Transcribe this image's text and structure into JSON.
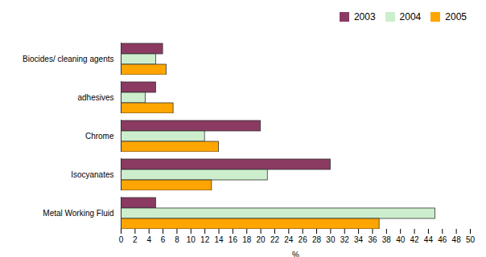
{
  "chart_data": {
    "type": "bar",
    "orientation": "horizontal",
    "categories": [
      "Metal Working Fluid",
      "Isocyanates",
      "Chrome",
      "adhesives",
      "Biocides/ cleaning agents"
    ],
    "series": [
      {
        "name": "2003",
        "color": "#8B3A62",
        "values": [
          5,
          30,
          20,
          5,
          6
        ]
      },
      {
        "name": "2004",
        "color": "#CCEECC",
        "values": [
          45,
          21,
          12,
          3.5,
          5
        ]
      },
      {
        "name": "2005",
        "color": "#FFA500",
        "values": [
          37,
          13,
          14,
          7.5,
          6.5
        ]
      }
    ],
    "xlabel": "%",
    "xlim": [
      0,
      50
    ],
    "xticks": [
      0,
      2,
      4,
      6,
      8,
      10,
      12,
      14,
      16,
      18,
      20,
      22,
      24,
      26,
      28,
      30,
      32,
      34,
      36,
      38,
      40,
      42,
      44,
      46,
      48,
      50
    ],
    "legend": "upper right",
    "grid": false
  }
}
